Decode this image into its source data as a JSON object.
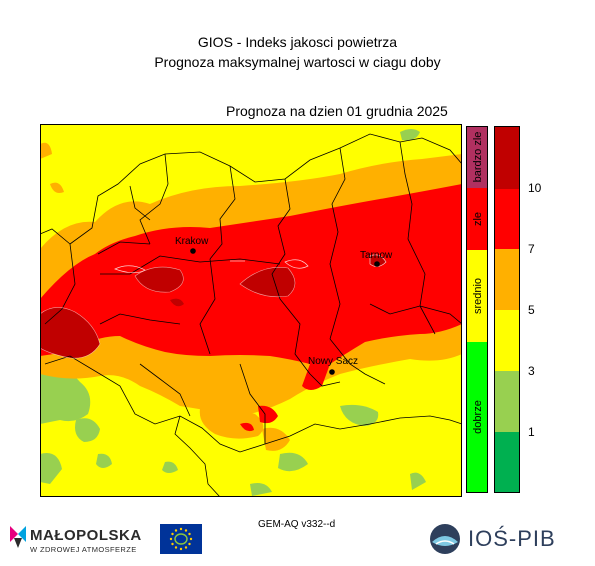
{
  "header": {
    "title_line1": "GIOS - Indeks jakosci powietrza",
    "title_line2": "Prognoza maksymalnej wartosci w ciagu doby"
  },
  "forecast_date_label": "Prognoza na dzien  01 grudnia 2025",
  "cities": [
    {
      "name": "Krakow"
    },
    {
      "name": "Tarnow"
    },
    {
      "name": "Nowy Sacz"
    }
  ],
  "categories": [
    {
      "label": "bardzo zle",
      "color": "#b03060"
    },
    {
      "label": "zle",
      "color": "#ff0000"
    },
    {
      "label": "srednio",
      "color": "#ffff00"
    },
    {
      "label": "dobrze",
      "color": "#00ff00"
    }
  ],
  "legend": {
    "bands": [
      {
        "color": "#c00000"
      },
      {
        "color": "#ff0000"
      },
      {
        "color": "#ffb000"
      },
      {
        "color": "#ffff00"
      },
      {
        "color": "#98d050"
      },
      {
        "color": "#00b050"
      }
    ],
    "ticks": [
      "10",
      "7",
      "5",
      "3",
      "1"
    ]
  },
  "model_label": "GEM-AQ v332--d",
  "logos": {
    "malopolska_name": "MAŁOPOLSKA",
    "malopolska_tagline": "W ZDROWEJ ATMOSFERZE",
    "eu_flag_icon": "eu-flag-life-icon",
    "ios_name": "IOŚ-PIB"
  }
}
